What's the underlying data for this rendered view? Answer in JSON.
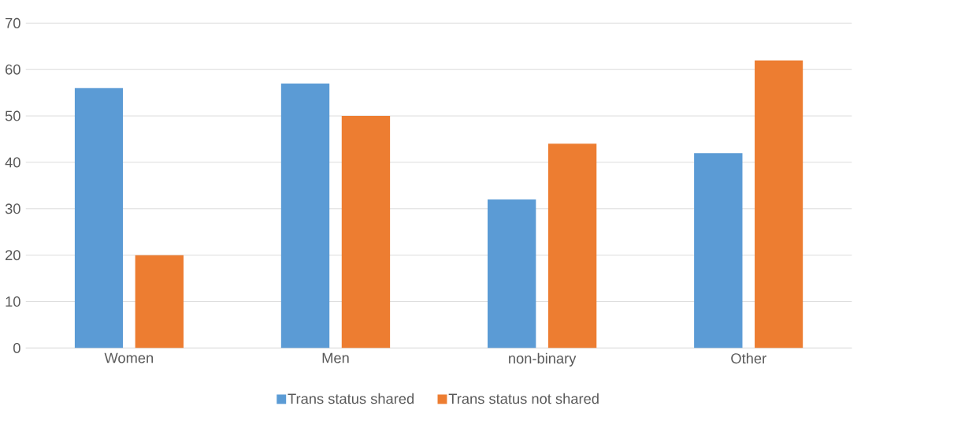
{
  "chart_data": {
    "type": "bar",
    "categories": [
      "Women",
      "Men",
      "non-binary",
      "Other"
    ],
    "series": [
      {
        "name": "Trans status shared",
        "color": "#5b9bd5",
        "values": [
          56,
          57,
          32,
          42
        ]
      },
      {
        "name": "Trans status not shared",
        "color": "#ed7d31",
        "values": [
          20,
          50,
          44,
          62
        ]
      }
    ],
    "ylim": [
      0,
      70
    ],
    "yticks": [
      0,
      10,
      20,
      30,
      40,
      50,
      60,
      70
    ],
    "grid": "y",
    "legend": "bottom"
  }
}
